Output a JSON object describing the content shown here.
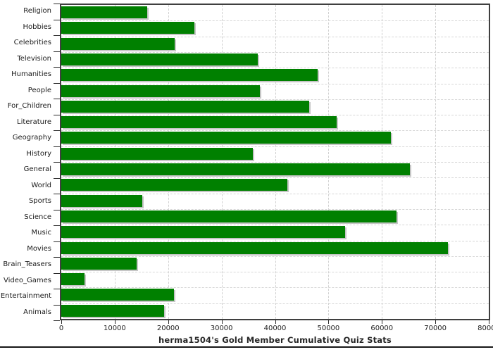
{
  "chart_data": {
    "type": "bar",
    "orientation": "horizontal",
    "title": "herma1504's Gold Member Cumulative Quiz Stats",
    "categories": [
      "Religion",
      "Hobbies",
      "Celebrities",
      "Television",
      "Humanities",
      "People",
      "For_Children",
      "Literature",
      "Geography",
      "History",
      "General",
      "World",
      "Sports",
      "Science",
      "Music",
      "Movies",
      "Brain_Teasers",
      "Video_Games",
      "Entertainment",
      "Animals"
    ],
    "values": [
      16100,
      24900,
      21200,
      36800,
      48000,
      37200,
      46400,
      51500,
      61700,
      35900,
      65300,
      42300,
      15100,
      62800,
      53100,
      72300,
      14100,
      4400,
      21100,
      19300
    ],
    "xlim": [
      0,
      80000
    ],
    "x_ticks": [
      0,
      10000,
      20000,
      30000,
      40000,
      50000,
      60000,
      70000,
      80000
    ],
    "x_tick_labels": [
      "0",
      "10000",
      "20000",
      "30000",
      "40000",
      "50000",
      "60000",
      "70000",
      "80000"
    ],
    "grid": "dashed",
    "legend": "none",
    "bar_color": "#008000",
    "bar_shadow_color": "#c6c6c6"
  },
  "colors": {
    "background": "#ffffff",
    "plot_border": "#3f3f3f",
    "grid": "#d0d0d0",
    "text": "#1a1a1a"
  }
}
